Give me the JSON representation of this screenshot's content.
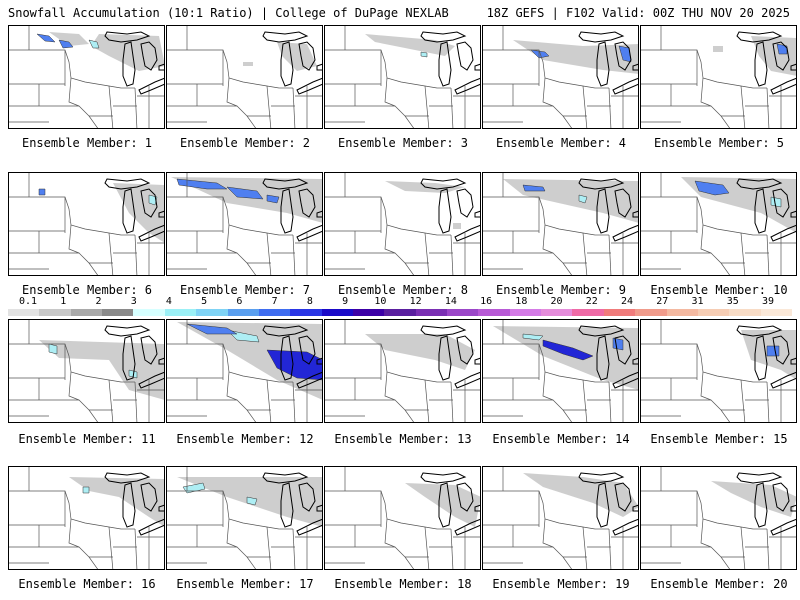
{
  "header": {
    "title_left": "Snowfall Accumulation (10:1 Ratio) | College of DuPage NEXLAB",
    "title_right": "18Z GEFS | F102 Valid: 00Z THU NOV 20 2025"
  },
  "panels": [
    {
      "label": "Ensemble Member: 1",
      "snow": [
        {
          "t": "b",
          "p": "28,8 40,10 46,16 36,15"
        },
        {
          "t": "b",
          "p": "50,14 60,16 64,21 54,22"
        },
        {
          "t": "c",
          "p": "80,14 88,16 90,22 84,22"
        },
        {
          "t": "g",
          "p": "90,8 150,10 156,40 130,45 100,30 82,20"
        },
        {
          "t": "g",
          "p": "40,6 70,8 80,18 60,20"
        }
      ]
    },
    {
      "label": "Ensemble Member: 2",
      "snow": [
        {
          "t": "g",
          "p": "110,16 140,18 150,40 130,45 115,30"
        },
        {
          "t": "g",
          "p": "76,36 86,36 86,40 76,40"
        }
      ]
    },
    {
      "label": "Ensemble Member: 3",
      "snow": [
        {
          "t": "g",
          "p": "40,8 110,14 130,20 120,30 80,22 50,16"
        },
        {
          "t": "c",
          "p": "96,26 102,27 102,31 96,30"
        }
      ]
    },
    {
      "label": "Ensemble Member: 4",
      "snow": [
        {
          "t": "b",
          "p": "48,24 62,26 66,30 56,32"
        },
        {
          "t": "b",
          "p": "136,20 146,22 148,36 140,34"
        },
        {
          "t": "g",
          "p": "30,14 100,20 156,18 156,48 120,44 60,34"
        }
      ]
    },
    {
      "label": "Ensemble Member: 5",
      "snow": [
        {
          "t": "b",
          "p": "136,18 146,20 146,28 138,28"
        },
        {
          "t": "g",
          "p": "110,10 156,12 156,50 130,45 118,30"
        },
        {
          "t": "g",
          "p": "72,20 82,20 82,26 72,26"
        }
      ]
    },
    {
      "label": "Ensemble Member: 6",
      "snow": [
        {
          "t": "b",
          "p": "30,16 36,16 36,22 30,22"
        },
        {
          "t": "g",
          "p": "104,10 156,12 156,70 140,60 120,40"
        },
        {
          "t": "c",
          "p": "140,22 148,24 146,32 140,30"
        }
      ]
    },
    {
      "label": "Ensemble Member: 7",
      "snow": [
        {
          "t": "b",
          "p": "10,6 50,10 60,16 40,16 12,12"
        },
        {
          "t": "b",
          "p": "60,14 90,18 96,26 70,24"
        },
        {
          "t": "b",
          "p": "100,22 112,24 110,30 100,28"
        },
        {
          "t": "g",
          "p": "4,4 156,6 156,50 120,40 60,30"
        }
      ]
    },
    {
      "label": "Ensemble Member: 8",
      "snow": [
        {
          "t": "g",
          "p": "60,8 110,10 140,14 120,20 80,18"
        },
        {
          "t": "g",
          "p": "128,50 136,50 136,56 128,56"
        }
      ]
    },
    {
      "label": "Ensemble Member: 9",
      "snow": [
        {
          "t": "b",
          "p": "40,12 60,14 62,18 42,18"
        },
        {
          "t": "c",
          "p": "96,22 104,24 102,30 96,28"
        },
        {
          "t": "g",
          "p": "20,6 156,8 156,50 120,40 40,22"
        }
      ]
    },
    {
      "label": "Ensemble Member: 10",
      "snow": [
        {
          "t": "b",
          "p": "54,8 82,12 88,20 74,22 58,18"
        },
        {
          "t": "c",
          "p": "130,24 140,26 140,34 130,32"
        },
        {
          "t": "g",
          "p": "40,4 156,6 156,60 120,40 60,24"
        }
      ]
    },
    {
      "label": "Ensemble Member: 11",
      "snow": [
        {
          "t": "c",
          "p": "40,24 48,26 48,34 40,32"
        },
        {
          "t": "c",
          "p": "120,50 128,52 128,58 120,56"
        },
        {
          "t": "g",
          "p": "30,20 156,24 156,80 120,70 100,40 50,38"
        }
      ]
    },
    {
      "label": "Ensemble Member: 12",
      "snow": [
        {
          "t": "b",
          "p": "20,4 60,8 70,14 40,14"
        },
        {
          "t": "c",
          "p": "60,10 90,16 92,22 70,20"
        },
        {
          "t": "d",
          "p": "100,30 140,32 156,40 156,60 130,58 110,48"
        },
        {
          "t": "g",
          "p": "10,2 156,4 156,80 110,60 60,30"
        }
      ]
    },
    {
      "label": "Ensemble Member: 13",
      "snow": [
        {
          "t": "g",
          "p": "40,14 120,14 150,30 140,50 110,40 60,30"
        }
      ]
    },
    {
      "label": "Ensemble Member: 14",
      "snow": [
        {
          "t": "d",
          "p": "60,20 90,28 110,36 100,40 80,34 60,26"
        },
        {
          "t": "c",
          "p": "40,14 60,16 56,20 40,18"
        },
        {
          "t": "b",
          "p": "130,18 140,20 140,30 130,28"
        },
        {
          "t": "g",
          "p": "10,6 156,8 156,70 120,60 60,36"
        }
      ]
    },
    {
      "label": "Ensemble Member: 15",
      "snow": [
        {
          "t": "b",
          "p": "126,26 138,26 138,36 126,36"
        },
        {
          "t": "g",
          "p": "100,10 156,10 156,60 140,50 110,40"
        }
      ]
    },
    {
      "label": "Ensemble Member: 16",
      "snow": [
        {
          "t": "c",
          "p": "74,20 80,20 80,26 74,26"
        },
        {
          "t": "g",
          "p": "60,10 156,12 156,60 140,50 110,30 80,24"
        }
      ]
    },
    {
      "label": "Ensemble Member: 17",
      "snow": [
        {
          "t": "c",
          "p": "16,20 36,16 38,22 20,26"
        },
        {
          "t": "c",
          "p": "80,30 90,32 88,38 80,36"
        },
        {
          "t": "g",
          "p": "10,10 156,10 156,60 120,50 60,30"
        }
      ]
    },
    {
      "label": "Ensemble Member: 18",
      "snow": [
        {
          "t": "g",
          "p": "80,16 130,18 156,30 150,60 130,50 100,30"
        }
      ]
    },
    {
      "label": "Ensemble Member: 19",
      "snow": [
        {
          "t": "g",
          "p": "40,6 100,10 140,16 156,40 140,50 110,36 60,20"
        }
      ]
    },
    {
      "label": "Ensemble Member: 20",
      "snow": [
        {
          "t": "g",
          "p": "70,14 130,18 156,30 150,50 120,40 90,26"
        }
      ]
    }
  ],
  "scale": {
    "labels": [
      "0.1",
      "1",
      "2",
      "3",
      "4",
      "5",
      "6",
      "7",
      "8",
      "9",
      "10",
      "12",
      "14",
      "16",
      "18",
      "20",
      "22",
      "24",
      "27",
      "31",
      "35",
      "39"
    ],
    "colors": [
      "#e2e2e2",
      "#c8c8c8",
      "#a9a9a9",
      "#8a8a8a",
      "#d6ffff",
      "#9bf0f6",
      "#7fd3f5",
      "#5a9fef",
      "#3f6df0",
      "#2a36e5",
      "#1a0ac8",
      "#3c00a6",
      "#5a1f9f",
      "#7a2fb3",
      "#9b47c8",
      "#b85ad6",
      "#d47be6",
      "#e58ddb",
      "#ef6aa6",
      "#f07b7b",
      "#f09b8b",
      "#f4b9a1",
      "#f6cdb4",
      "#f8dcc6",
      "#fae8d8"
    ],
    "snow_colors": {
      "g": "#bdbdbd",
      "b": "#4f7ff0",
      "c": "#aeeef4",
      "d": "#2226d6"
    }
  }
}
